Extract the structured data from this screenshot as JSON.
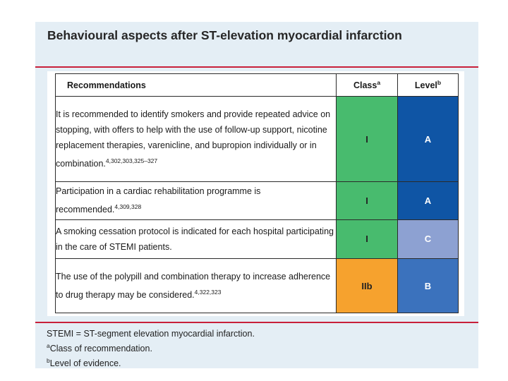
{
  "title": "Behavioural aspects after ST-elevation myocardial infarction",
  "table": {
    "headers": {
      "recommendations": "Recommendations",
      "class": "Class",
      "class_sup": "a",
      "level": "Level",
      "level_sup": "b"
    },
    "rows": [
      {
        "text": "It is recommended to identify smokers and provide repeated advice on stopping, with offers to help with the use of follow-up support, nicotine replacement therapies, varenicline, and bupropion individually or in combination.",
        "refs": "4,302,303,325–327",
        "class": "I",
        "level": "A",
        "class_color": "#48bb6e",
        "level_color": "#0f55a5"
      },
      {
        "text": "Participation in a cardiac rehabilitation programme is recommended.",
        "refs": "4,309,328",
        "class": "I",
        "level": "A",
        "class_color": "#48bb6e",
        "level_color": "#0f55a5"
      },
      {
        "text": "A smoking cessation protocol is indicated for each hospital participating in the care of STEMI patients.",
        "refs": "",
        "class": "I",
        "level": "C",
        "class_color": "#48bb6e",
        "level_color": "#8da1d2"
      },
      {
        "text": "The use of the polypill and combination therapy to increase adherence to drug therapy may be considered.",
        "refs": "4,322,323",
        "class": "IIb",
        "level": "B",
        "class_color": "#f6a22e",
        "level_color": "#3b72bd"
      }
    ]
  },
  "footnotes": {
    "stemi": "STEMI = ST-segment elevation myocardial infarction.",
    "a_sup": "a",
    "a_text": "Class of recommendation.",
    "b_sup": "b",
    "b_text": "Level of evidence."
  },
  "colors": {
    "panel_bg": "#e4eef5",
    "accent_rule": "#c8203a"
  }
}
